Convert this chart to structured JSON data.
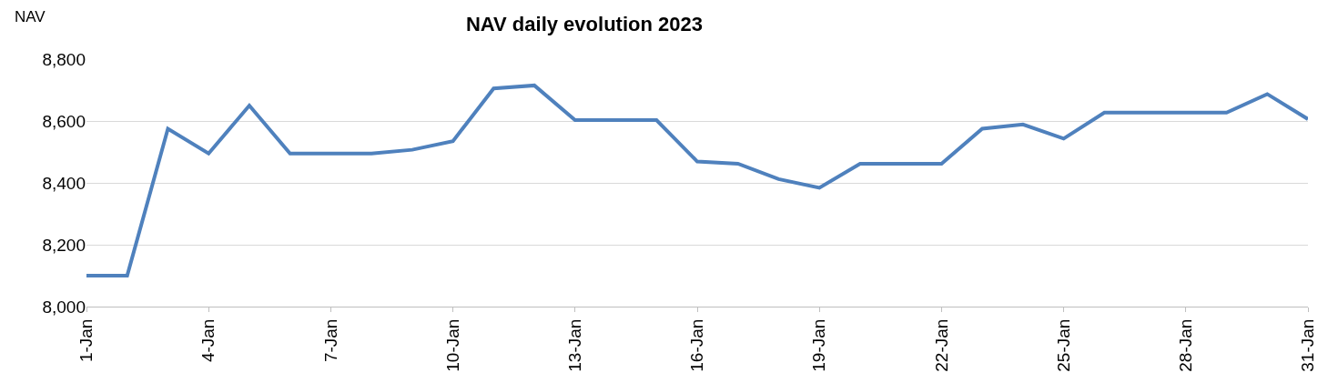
{
  "chart_data": {
    "type": "line",
    "title": "NAV daily evolution 2023",
    "ylabel": "NAV",
    "x": [
      "2023-01-01",
      "2023-01-02",
      "2023-01-03",
      "2023-01-04",
      "2023-01-05",
      "2023-01-06",
      "2023-01-07",
      "2023-01-08",
      "2023-01-09",
      "2023-01-10",
      "2023-01-11",
      "2023-01-12",
      "2023-01-13",
      "2023-01-14",
      "2023-01-15",
      "2023-01-16",
      "2023-01-17",
      "2023-01-18",
      "2023-01-19",
      "2023-01-20",
      "2023-01-21",
      "2023-01-22",
      "2023-01-23",
      "2023-01-24",
      "2023-01-25",
      "2023-01-26",
      "2023-01-27",
      "2023-01-28",
      "2023-01-29",
      "2023-01-30",
      "2023-01-31"
    ],
    "series": [
      {
        "color": "#4f81bd",
        "values": [
          8100,
          8100,
          8575,
          8495,
          8650,
          8495,
          8495,
          8495,
          8507,
          8535,
          8705,
          8715,
          8603,
          8603,
          8603,
          8469,
          8462,
          8412,
          8384,
          8462,
          8462,
          8462,
          8575,
          8589,
          8543,
          8627,
          8627,
          8627,
          8627,
          8687,
          8606
        ]
      }
    ],
    "xlim": [
      "2023-01-01",
      "2023-01-31"
    ],
    "xticks": [
      {
        "value": "2023-01-01",
        "label": "1-Jan"
      },
      {
        "value": "2023-01-04",
        "label": "4-Jan"
      },
      {
        "value": "2023-01-07",
        "label": "7-Jan"
      },
      {
        "value": "2023-01-10",
        "label": "10-Jan"
      },
      {
        "value": "2023-01-13",
        "label": "13-Jan"
      },
      {
        "value": "2023-01-16",
        "label": "16-Jan"
      },
      {
        "value": "2023-01-19",
        "label": "19-Jan"
      },
      {
        "value": "2023-01-22",
        "label": "22-Jan"
      },
      {
        "value": "2023-01-25",
        "label": "25-Jan"
      },
      {
        "value": "2023-01-28",
        "label": "28-Jan"
      },
      {
        "value": "2023-01-31",
        "label": "31-Jan"
      }
    ],
    "ylim": [
      8000,
      8800
    ],
    "yticks": [
      {
        "value": 8000,
        "label": "8,000"
      },
      {
        "value": 8200,
        "label": "8,200"
      },
      {
        "value": 8400,
        "label": "8,400"
      },
      {
        "value": 8600,
        "label": "8,600"
      },
      {
        "value": 8800,
        "label": "8,800"
      }
    ],
    "grid": "y",
    "marker": "none",
    "line_style": "solid"
  }
}
